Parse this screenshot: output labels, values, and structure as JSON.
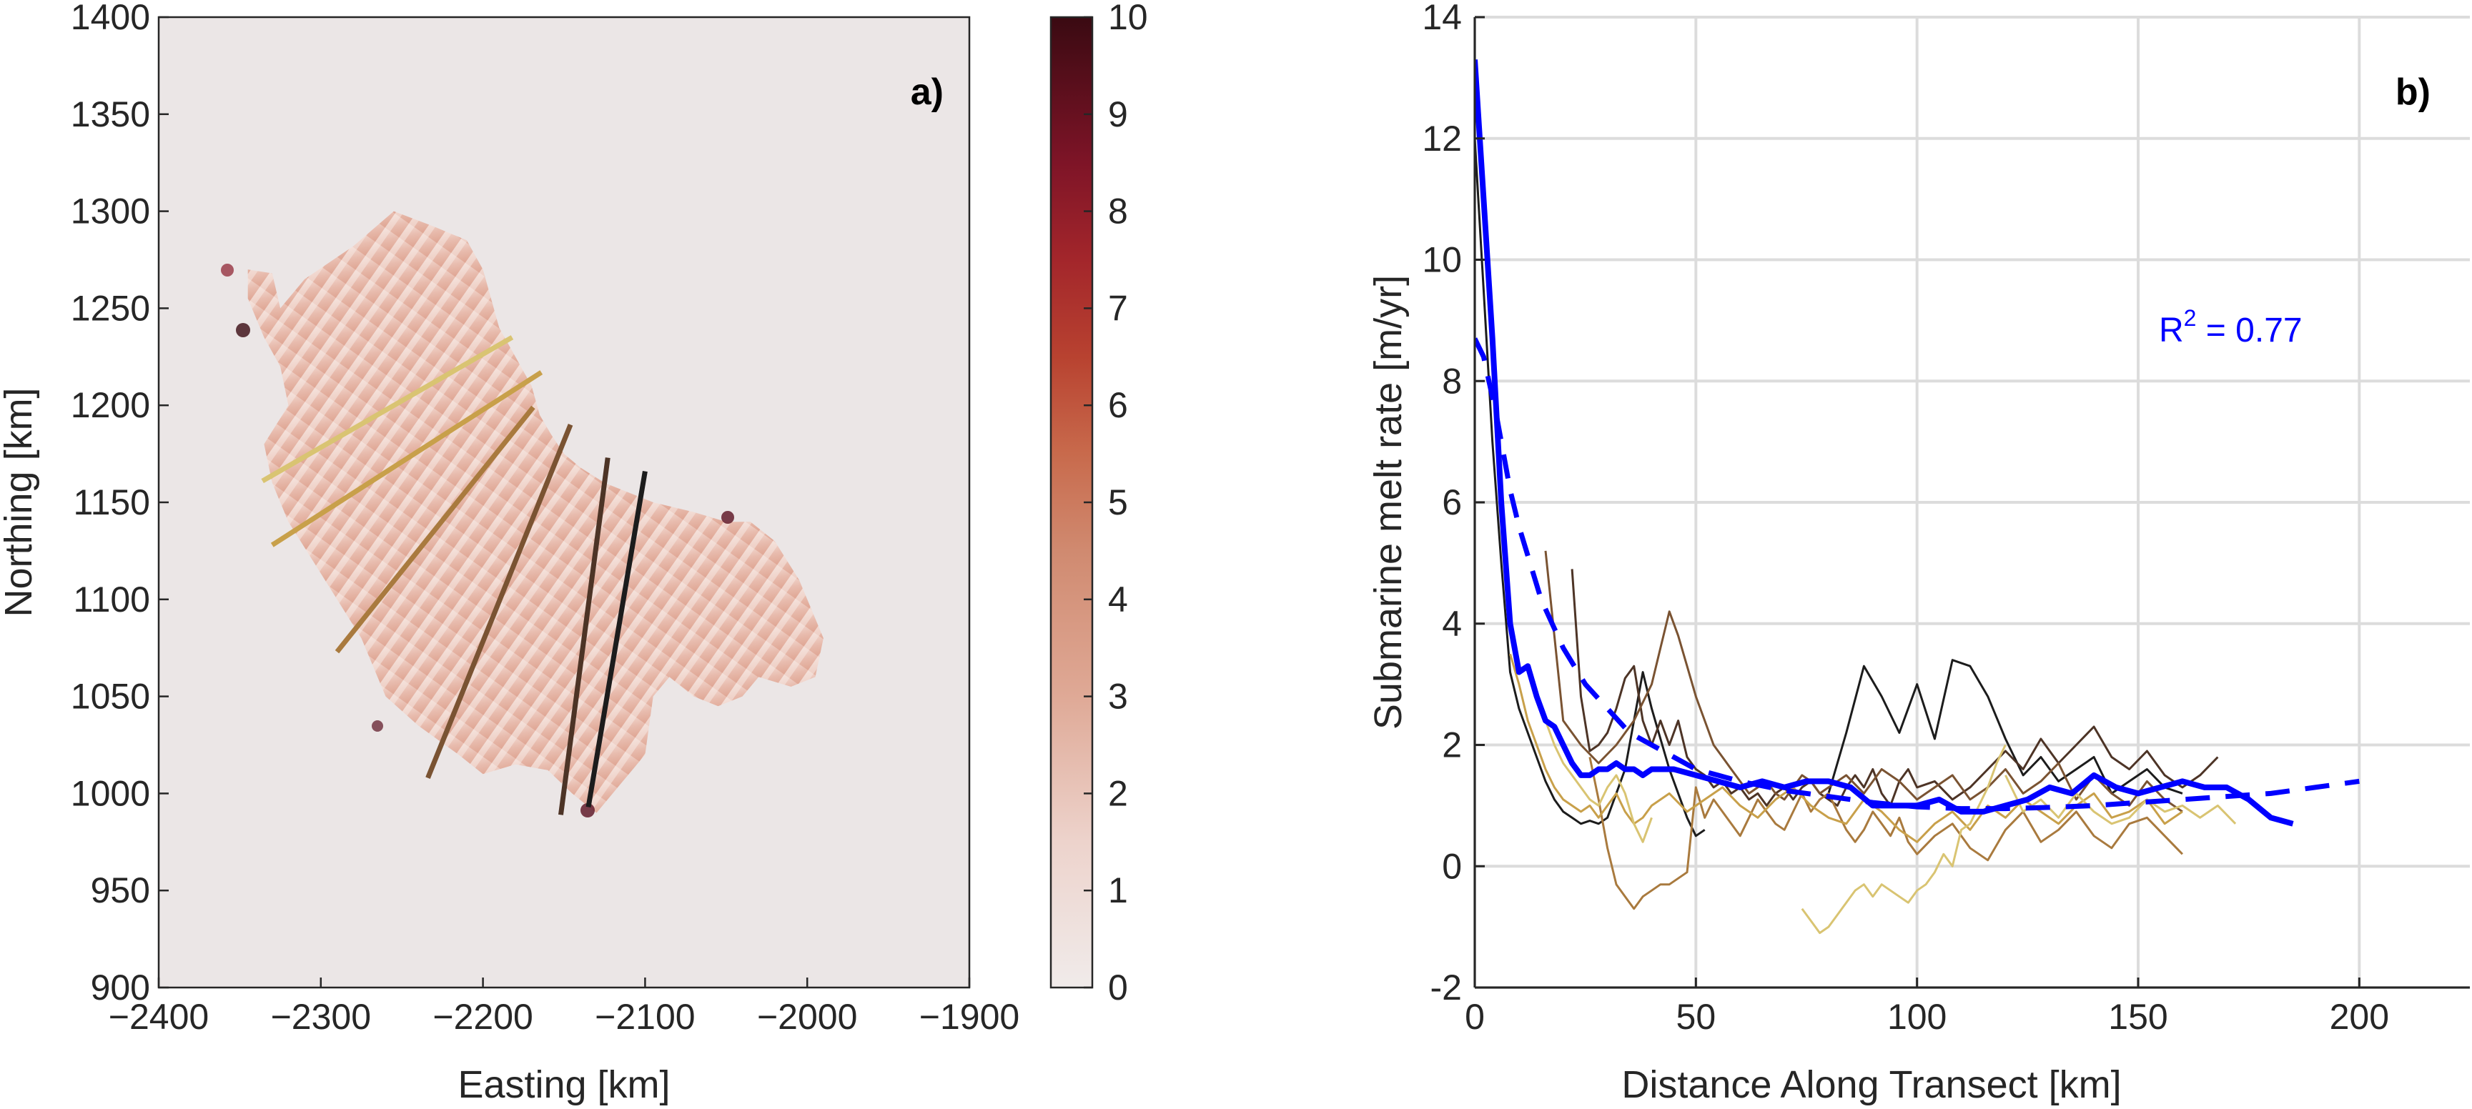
{
  "chart_data": [
    {
      "panel": "a)",
      "type": "heatmap",
      "xlabel": "Easting [km]",
      "ylabel": "Northing [km]",
      "xlim": [
        -2400,
        -1900
      ],
      "ylim": [
        900,
        1400
      ],
      "xticks": [
        -2400,
        -2300,
        -2200,
        -2100,
        -2000,
        -1900
      ],
      "yticks": [
        900,
        950,
        1000,
        1050,
        1100,
        1150,
        1200,
        1250,
        1300,
        1350,
        1400
      ],
      "colorbar": {
        "min": 0,
        "max": 10,
        "ticks": [
          0,
          1,
          2,
          3,
          4,
          5,
          6,
          7,
          8,
          9,
          10
        ]
      },
      "colors": {
        "background": "#ebe6e6",
        "cmap_low": "#f5e8e5",
        "cmap_mid": "#d08a70",
        "cmap_high": "#3a0a12"
      },
      "ice_shelf_outline": [
        [
          -2345,
          1270
        ],
        [
          -2330,
          1268
        ],
        [
          -2325,
          1250
        ],
        [
          -2310,
          1265
        ],
        [
          -2280,
          1282
        ],
        [
          -2255,
          1300
        ],
        [
          -2230,
          1292
        ],
        [
          -2210,
          1285
        ],
        [
          -2200,
          1270
        ],
        [
          -2190,
          1240
        ],
        [
          -2180,
          1225
        ],
        [
          -2170,
          1210
        ],
        [
          -2165,
          1195
        ],
        [
          -2158,
          1185
        ],
        [
          -2150,
          1175
        ],
        [
          -2140,
          1168
        ],
        [
          -2125,
          1160
        ],
        [
          -2110,
          1155
        ],
        [
          -2095,
          1150
        ],
        [
          -2070,
          1145
        ],
        [
          -2050,
          1140
        ],
        [
          -2035,
          1140
        ],
        [
          -2020,
          1130
        ],
        [
          -2005,
          1110
        ],
        [
          -1990,
          1080
        ],
        [
          -1995,
          1060
        ],
        [
          -2010,
          1055
        ],
        [
          -2030,
          1060
        ],
        [
          -2040,
          1050
        ],
        [
          -2055,
          1045
        ],
        [
          -2070,
          1050
        ],
        [
          -2085,
          1060
        ],
        [
          -2095,
          1050
        ],
        [
          -2100,
          1020
        ],
        [
          -2115,
          1005
        ],
        [
          -2130,
          990
        ],
        [
          -2145,
          1000
        ],
        [
          -2160,
          1012
        ],
        [
          -2180,
          1015
        ],
        [
          -2200,
          1010
        ],
        [
          -2215,
          1020
        ],
        [
          -2240,
          1035
        ],
        [
          -2260,
          1050
        ],
        [
          -2275,
          1080
        ],
        [
          -2290,
          1100
        ],
        [
          -2305,
          1120
        ],
        [
          -2320,
          1140
        ],
        [
          -2330,
          1160
        ],
        [
          -2335,
          1180
        ],
        [
          -2320,
          1200
        ],
        [
          -2325,
          1220
        ],
        [
          -2335,
          1235
        ],
        [
          -2345,
          1255
        ]
      ],
      "transects": [
        {
          "x": [
            -2336,
            -2182
          ],
          "y": [
            1161,
            1235
          ],
          "color": "#d9c472"
        },
        {
          "x": [
            -2330,
            -2164
          ],
          "y": [
            1128,
            1217
          ],
          "color": "#c8a04a"
        },
        {
          "x": [
            -2290,
            -2169
          ],
          "y": [
            1073,
            1199
          ],
          "color": "#a97a3e"
        },
        {
          "x": [
            -2234,
            -2146
          ],
          "y": [
            1008,
            1190
          ],
          "color": "#7a5332"
        },
        {
          "x": [
            -2152,
            -2123
          ],
          "y": [
            989,
            1173
          ],
          "color": "#4d3426"
        },
        {
          "x": [
            -2135,
            -2100
          ],
          "y": [
            993,
            1166
          ],
          "color": "#1c1c1c"
        }
      ]
    },
    {
      "panel": "b)",
      "type": "line",
      "xlabel": "Distance Along Transect [km]",
      "ylabel": "Submarine melt rate [m/yr]",
      "xlim": [
        0,
        225
      ],
      "ylim": [
        -2,
        14
      ],
      "xticks": [
        0,
        50,
        100,
        150,
        200
      ],
      "yticks": [
        -2,
        0,
        2,
        4,
        6,
        8,
        10,
        12,
        14
      ],
      "grid": true,
      "annotation": {
        "base": "R",
        "sup": "2",
        "rest": " = 0.77"
      },
      "series": [
        {
          "role": "transect",
          "color": "#1c1c1c",
          "x": [
            0,
            2,
            4,
            6,
            8,
            10,
            12,
            14,
            16,
            18,
            20,
            22,
            24,
            26,
            28,
            30,
            32,
            34,
            36,
            38,
            40,
            42,
            44,
            46,
            48,
            50,
            52
          ],
          "y": [
            12,
            9.5,
            7,
            5,
            3.2,
            2.6,
            2.2,
            1.8,
            1.4,
            1.1,
            0.9,
            0.8,
            0.7,
            0.75,
            0.7,
            0.8,
            1.2,
            1.6,
            2.4,
            3.2,
            2.6,
            2.1,
            1.6,
            1.2,
            0.8,
            0.5,
            0.6
          ]
        },
        {
          "role": "transect",
          "color": "#1c1c1c",
          "x": [
            80,
            84,
            88,
            92,
            96,
            100,
            104,
            108,
            112,
            116,
            120,
            124,
            128,
            132,
            136,
            140,
            144,
            148,
            152,
            156,
            160
          ],
          "y": [
            1.2,
            2.2,
            3.3,
            2.8,
            2.2,
            3.0,
            2.1,
            3.4,
            3.3,
            2.8,
            2.1,
            1.5,
            1.8,
            1.4,
            1.6,
            1.8,
            1.2,
            1.4,
            1.6,
            1.3,
            1.2
          ]
        },
        {
          "role": "transect",
          "color": "#4d3426",
          "x": [
            22,
            24,
            26,
            28,
            30,
            32,
            34,
            36,
            38,
            40,
            42,
            44,
            46,
            48,
            50,
            52,
            54,
            56,
            58,
            60,
            62,
            64,
            66,
            68,
            70,
            72,
            74,
            76,
            78,
            80,
            82,
            84,
            86,
            88,
            90,
            92,
            94,
            96,
            98,
            100,
            104,
            108,
            112,
            116,
            120,
            124,
            128,
            132,
            136,
            140,
            144,
            148,
            152,
            156,
            160,
            164,
            168
          ],
          "y": [
            4.9,
            2.8,
            1.9,
            2.0,
            2.2,
            2.6,
            3.1,
            3.3,
            2.4,
            2.0,
            2.4,
            2.0,
            2.4,
            1.8,
            1.6,
            1.5,
            1.3,
            1.4,
            1.2,
            1.3,
            1.1,
            1.2,
            1.0,
            1.2,
            1.3,
            1.1,
            1.3,
            1.4,
            1.2,
            1.1,
            1.0,
            1.3,
            1.5,
            1.3,
            1.6,
            1.2,
            1.0,
            1.4,
            1.6,
            1.3,
            1.4,
            1.1,
            1.3,
            1.6,
            1.9,
            1.6,
            2.1,
            1.7,
            2.0,
            2.3,
            1.8,
            1.6,
            1.9,
            1.5,
            1.3,
            1.5,
            1.8
          ]
        },
        {
          "role": "transect",
          "color": "#7a5332",
          "x": [
            16,
            20,
            24,
            28,
            32,
            36,
            40,
            42,
            44,
            46,
            48,
            50,
            52,
            54,
            56,
            58,
            60,
            62,
            64,
            66,
            68,
            70,
            72,
            74,
            76,
            78,
            80,
            84,
            88,
            92,
            96,
            100,
            104,
            108,
            112,
            116,
            120,
            124,
            128,
            132,
            136,
            140,
            144,
            148,
            152,
            156,
            160
          ],
          "y": [
            5.2,
            2.4,
            2.0,
            1.7,
            2.0,
            2.4,
            3.0,
            3.6,
            4.2,
            3.8,
            3.3,
            2.8,
            2.4,
            2.0,
            1.8,
            1.6,
            1.4,
            1.2,
            1.3,
            1.4,
            1.2,
            1.1,
            1.3,
            1.5,
            1.4,
            1.2,
            1.3,
            1.5,
            1.2,
            1.6,
            1.4,
            1.1,
            1.3,
            1.5,
            1.1,
            1.3,
            1.6,
            1.2,
            1.4,
            1.7,
            1.1,
            1.5,
            1.2,
            1.0,
            1.4,
            1.1,
            0.9
          ]
        },
        {
          "role": "transect",
          "color": "#a97a3e",
          "x": [
            26,
            28,
            30,
            32,
            34,
            36,
            38,
            40,
            42,
            44,
            46,
            48,
            50,
            52,
            54,
            56,
            58,
            60,
            62,
            64,
            66,
            68,
            70,
            72,
            74,
            76,
            78,
            80,
            82,
            84,
            86,
            88,
            90,
            92,
            94,
            96,
            98,
            100,
            104,
            108,
            112,
            116,
            120,
            124,
            128,
            132,
            136,
            140,
            144,
            148,
            152,
            156,
            160
          ],
          "y": [
            1.8,
            1.1,
            0.3,
            -0.3,
            -0.5,
            -0.7,
            -0.5,
            -0.4,
            -0.3,
            -0.3,
            -0.2,
            -0.1,
            1.3,
            0.8,
            1.1,
            0.9,
            0.7,
            0.5,
            0.8,
            1.1,
            0.9,
            0.7,
            0.6,
            0.9,
            1.2,
            0.9,
            1.1,
            1.2,
            0.9,
            0.6,
            0.4,
            0.6,
            0.9,
            0.7,
            0.5,
            0.8,
            0.4,
            0.2,
            0.5,
            0.7,
            0.3,
            0.1,
            0.6,
            0.9,
            0.4,
            0.6,
            0.9,
            0.5,
            0.3,
            0.7,
            0.8,
            0.5,
            0.2
          ]
        },
        {
          "role": "transect",
          "color": "#c8a04a",
          "x": [
            8,
            10,
            12,
            14,
            16,
            18,
            20,
            22,
            24,
            26,
            28,
            30,
            32,
            34,
            36,
            38,
            40,
            44,
            48,
            52,
            56,
            60,
            64,
            68,
            72,
            76,
            80,
            84,
            88,
            92,
            96,
            100,
            104,
            108,
            112,
            116,
            120,
            124,
            128,
            132,
            136,
            140,
            144,
            148,
            152,
            156,
            160
          ],
          "y": [
            3.5,
            3.0,
            2.4,
            2.0,
            1.6,
            1.3,
            1.1,
            1.0,
            0.9,
            1.0,
            0.8,
            1.0,
            1.2,
            0.9,
            0.7,
            0.8,
            1.0,
            1.2,
            0.9,
            1.1,
            1.3,
            1.0,
            0.8,
            1.1,
            1.3,
            1.0,
            0.8,
            0.7,
            1.1,
            0.9,
            0.6,
            0.4,
            0.7,
            0.9,
            0.6,
            1.0,
            0.8,
            1.1,
            0.9,
            0.7,
            1.0,
            1.2,
            0.8,
            0.9,
            1.1,
            0.7,
            0.9
          ]
        },
        {
          "role": "transect",
          "color": "#d9c472",
          "x": [
            14,
            16,
            18,
            20,
            22,
            24,
            26,
            28,
            30,
            32,
            34,
            36,
            38,
            40
          ],
          "y": [
            2.8,
            2.4,
            2.0,
            1.7,
            1.5,
            1.3,
            1.1,
            1.0,
            1.3,
            1.5,
            1.2,
            0.7,
            0.4,
            0.8
          ]
        },
        {
          "role": "transect",
          "color": "#d9c472",
          "x": [
            74,
            76,
            78,
            80,
            82,
            84,
            86,
            88,
            90,
            92,
            94,
            96,
            98,
            100,
            102,
            104,
            106,
            108,
            110,
            112,
            114,
            116,
            118,
            120
          ],
          "y": [
            -0.7,
            -0.9,
            -1.1,
            -1.0,
            -0.8,
            -0.6,
            -0.4,
            -0.3,
            -0.5,
            -0.3,
            -0.4,
            -0.5,
            -0.6,
            -0.4,
            -0.3,
            -0.1,
            0.2,
            0.0,
            0.6,
            0.7,
            1.0,
            1.3,
            1.7,
            2.0
          ]
        },
        {
          "role": "transect",
          "color": "#d9c472",
          "x": [
            120,
            124,
            128,
            132,
            136,
            140,
            144,
            148,
            152,
            156,
            160,
            164,
            168,
            172
          ],
          "y": [
            1.5,
            0.9,
            1.1,
            0.8,
            1.2,
            0.9,
            0.7,
            0.8,
            1.1,
            0.9,
            1.0,
            0.8,
            1.0,
            0.7
          ]
        },
        {
          "role": "mean",
          "color": "#0000ff",
          "x": [
            0,
            2,
            4,
            6,
            8,
            10,
            12,
            14,
            16,
            18,
            20,
            22,
            24,
            26,
            28,
            30,
            32,
            34,
            36,
            38,
            40,
            45,
            50,
            55,
            60,
            65,
            70,
            75,
            80,
            85,
            90,
            95,
            100,
            105,
            110,
            115,
            120,
            125,
            130,
            135,
            140,
            145,
            150,
            155,
            160,
            165,
            170,
            175,
            180,
            185
          ],
          "y": [
            13.3,
            11.0,
            8.7,
            6.0,
            4.0,
            3.2,
            3.3,
            2.8,
            2.4,
            2.3,
            2.0,
            1.7,
            1.5,
            1.5,
            1.6,
            1.6,
            1.7,
            1.6,
            1.6,
            1.5,
            1.6,
            1.6,
            1.5,
            1.4,
            1.3,
            1.4,
            1.3,
            1.4,
            1.4,
            1.3,
            1.0,
            1.0,
            1.0,
            1.1,
            0.9,
            0.9,
            1.0,
            1.1,
            1.3,
            1.2,
            1.5,
            1.3,
            1.2,
            1.3,
            1.4,
            1.3,
            1.3,
            1.1,
            0.8,
            0.7
          ]
        },
        {
          "role": "fit",
          "color": "#0000ff",
          "dash": true,
          "x": [
            0,
            2,
            5,
            8,
            10,
            15,
            20,
            25,
            30,
            35,
            40,
            45,
            50,
            55,
            60,
            70,
            80,
            90,
            100,
            110,
            120,
            130,
            140,
            150,
            160,
            170,
            180,
            190,
            200
          ],
          "y": [
            8.7,
            8.4,
            7.4,
            6.2,
            5.6,
            4.4,
            3.6,
            3.0,
            2.6,
            2.2,
            2.0,
            1.8,
            1.6,
            1.5,
            1.4,
            1.25,
            1.15,
            1.05,
            0.98,
            0.95,
            0.95,
            0.97,
            1.0,
            1.05,
            1.1,
            1.15,
            1.2,
            1.3,
            1.4
          ]
        }
      ]
    }
  ]
}
